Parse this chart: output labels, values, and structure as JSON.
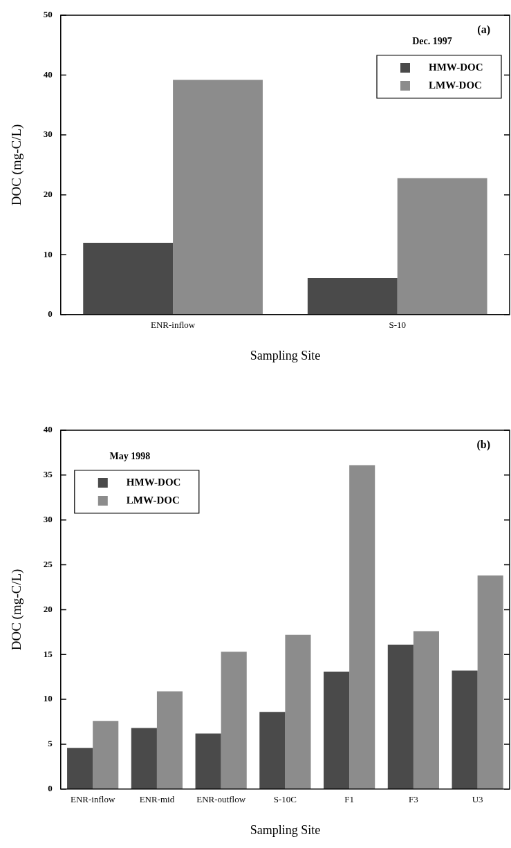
{
  "chart_data": [
    {
      "type": "bar",
      "categories": [
        "ENR-inflow",
        "S-10"
      ],
      "series": [
        {
          "name": "HMW-DOC",
          "color": "#4a4a4a",
          "values": [
            12.0,
            6.1
          ]
        },
        {
          "name": "LMW-DOC",
          "color": "#8c8c8c",
          "values": [
            39.2,
            22.8
          ]
        }
      ],
      "xlabel": "Sampling Site",
      "ylabel": "DOC (mg-C/L)",
      "legend_title": "Dec. 1997",
      "legend": "top right",
      "annotations": [
        "(a)"
      ],
      "ylim": [
        0,
        50
      ],
      "yticks": [
        0,
        10,
        20,
        30,
        40,
        50
      ],
      "grid": false
    },
    {
      "type": "bar",
      "categories": [
        "ENR-inflow",
        "ENR-mid",
        "ENR-outflow",
        "S-10C",
        "F1",
        "F3",
        "U3"
      ],
      "series": [
        {
          "name": "HMW-DOC",
          "color": "#4a4a4a",
          "values": [
            4.6,
            6.8,
            6.2,
            8.6,
            13.1,
            16.1,
            13.2
          ]
        },
        {
          "name": "LMW-DOC",
          "color": "#8c8c8c",
          "values": [
            7.6,
            10.9,
            15.3,
            17.2,
            36.1,
            17.6,
            23.8
          ]
        }
      ],
      "xlabel": "Sampling Site",
      "ylabel": "DOC (mg-C/L)",
      "legend_title": "May 1998",
      "legend": "top left",
      "annotations": [
        "(b)"
      ],
      "ylim": [
        0,
        40
      ],
      "yticks": [
        0,
        5,
        10,
        15,
        20,
        25,
        30,
        35,
        40
      ],
      "grid": false
    }
  ]
}
